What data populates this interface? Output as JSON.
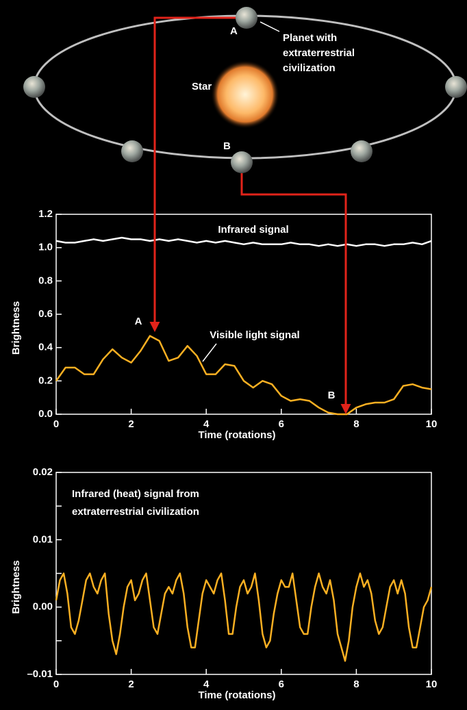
{
  "diagram": {
    "star": "Star",
    "planet_label": [
      "Planet with",
      "extraterrestrial",
      "civilization"
    ],
    "point_a": "A",
    "point_b": "B"
  },
  "chart_data": [
    {
      "type": "line",
      "xlabel": "Time (rotations)",
      "ylabel": "Brightness",
      "xlim": [
        0,
        10
      ],
      "ylim": [
        0,
        1.2
      ],
      "xticks": [
        0,
        2,
        4,
        6,
        8,
        10
      ],
      "yticks": [
        {
          "value": 0,
          "label": "0.0"
        },
        0.2,
        0.4,
        0.6,
        0.8,
        {
          "value": 1,
          "label": "1.0"
        },
        1.2
      ],
      "annotations": [
        "Infrared signal",
        "Visible light signal",
        "A",
        "B"
      ],
      "x": [
        0,
        0.25,
        0.5,
        0.75,
        1,
        1.25,
        1.5,
        1.75,
        2,
        2.25,
        2.5,
        2.75,
        3,
        3.25,
        3.5,
        3.75,
        4,
        4.25,
        4.5,
        4.75,
        5,
        5.25,
        5.5,
        5.75,
        6,
        6.25,
        6.5,
        6.75,
        7,
        7.25,
        7.5,
        7.75,
        8,
        8.25,
        8.5,
        8.75,
        9,
        9.25,
        9.5,
        9.75,
        10
      ],
      "series": [
        {
          "color": "#ffffff",
          "values": [
            1.04,
            1.03,
            1.03,
            1.04,
            1.05,
            1.04,
            1.05,
            1.06,
            1.05,
            1.05,
            1.04,
            1.05,
            1.04,
            1.05,
            1.04,
            1.03,
            1.04,
            1.03,
            1.04,
            1.03,
            1.02,
            1.03,
            1.02,
            1.02,
            1.02,
            1.03,
            1.02,
            1.02,
            1.01,
            1.02,
            1.01,
            1.02,
            1.01,
            1.02,
            1.02,
            1.01,
            1.02,
            1.02,
            1.03,
            1.02,
            1.04
          ]
        },
        {
          "color": "#fbb022",
          "values": [
            0.2,
            0.28,
            0.28,
            0.24,
            0.24,
            0.33,
            0.39,
            0.34,
            0.31,
            0.38,
            0.47,
            0.44,
            0.32,
            0.34,
            0.41,
            0.35,
            0.24,
            0.24,
            0.3,
            0.29,
            0.2,
            0.16,
            0.2,
            0.18,
            0.11,
            0.08,
            0.09,
            0.08,
            0.04,
            0.01,
            0,
            0,
            0.04,
            0.06,
            0.07,
            0.07,
            0.09,
            0.17,
            0.18,
            0.16,
            0.15
          ]
        }
      ]
    },
    {
      "type": "line",
      "xlabel": "Time (rotations)",
      "ylabel": "Brightness",
      "xlim": [
        0,
        10
      ],
      "ylim": [
        -0.01,
        0.02
      ],
      "xticks": [
        0,
        2,
        4,
        6,
        8,
        10
      ],
      "yticks": [
        {
          "value": -0.01,
          "label": "–0.01"
        },
        {
          "value": 0,
          "label": "0.00"
        },
        0.01,
        0.02
      ],
      "yminor": [
        -0.005,
        0.005,
        0.015
      ],
      "annotations": [
        [
          "Infrared (heat) signal from",
          "extraterrestrial civilization"
        ]
      ],
      "x": [
        0,
        0.1,
        0.2,
        0.3,
        0.4,
        0.5,
        0.6,
        0.7,
        0.8,
        0.9,
        1,
        1.1,
        1.2,
        1.3,
        1.4,
        1.5,
        1.6,
        1.7,
        1.8,
        1.9,
        2,
        2.1,
        2.2,
        2.3,
        2.4,
        2.5,
        2.6,
        2.7,
        2.8,
        2.9,
        3,
        3.1,
        3.2,
        3.3,
        3.4,
        3.5,
        3.6,
        3.7,
        3.8,
        3.9,
        4,
        4.1,
        4.2,
        4.3,
        4.4,
        4.5,
        4.6,
        4.7,
        4.8,
        4.9,
        5,
        5.1,
        5.2,
        5.3,
        5.4,
        5.5,
        5.6,
        5.7,
        5.8,
        5.9,
        6,
        6.1,
        6.2,
        6.3,
        6.4,
        6.5,
        6.6,
        6.7,
        6.8,
        6.9,
        7,
        7.1,
        7.2,
        7.3,
        7.4,
        7.5,
        7.6,
        7.7,
        7.8,
        7.9,
        8,
        8.1,
        8.2,
        8.3,
        8.4,
        8.5,
        8.6,
        8.7,
        8.8,
        8.9,
        9,
        9.1,
        9.2,
        9.3,
        9.4,
        9.5,
        9.6,
        9.7,
        9.8,
        9.9,
        10
      ],
      "series": [
        {
          "color": "#fbb022",
          "values": [
            0.001,
            0.004,
            0.005,
            0.002,
            -0.003,
            -0.004,
            -0.002,
            0.001,
            0.004,
            0.005,
            0.003,
            0.002,
            0.004,
            0.005,
            -0.001,
            -0.005,
            -0.007,
            -0.004,
            0,
            0.003,
            0.004,
            0.001,
            0.002,
            0.004,
            0.005,
            0.001,
            -0.003,
            -0.004,
            -0.001,
            0.002,
            0.003,
            0.002,
            0.004,
            0.005,
            0.002,
            -0.003,
            -0.006,
            -0.006,
            -0.002,
            0.002,
            0.004,
            0.003,
            0.002,
            0.004,
            0.005,
            0.001,
            -0.004,
            -0.004,
            0,
            0.003,
            0.004,
            0.002,
            0.003,
            0.005,
            0.001,
            -0.004,
            -0.006,
            -0.005,
            -0.001,
            0.002,
            0.004,
            0.003,
            0.003,
            0.005,
            0.001,
            -0.003,
            -0.004,
            -0.004,
            0,
            0.003,
            0.005,
            0.003,
            0.002,
            0.004,
            0.001,
            -0.004,
            -0.006,
            -0.008,
            -0.005,
            0,
            0.003,
            0.005,
            0.003,
            0.004,
            0.002,
            -0.002,
            -0.004,
            -0.003,
            0,
            0.003,
            0.004,
            0.002,
            0.004,
            0.002,
            -0.003,
            -0.006,
            -0.006,
            -0.003,
            0,
            0.001,
            0.003
          ]
        }
      ]
    }
  ]
}
